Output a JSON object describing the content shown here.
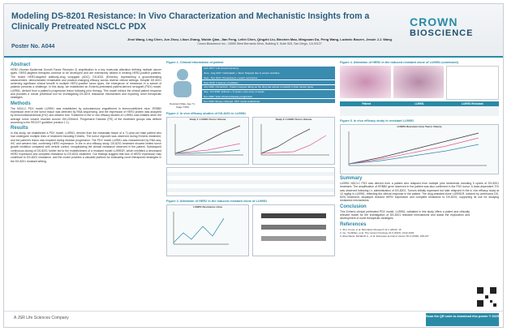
{
  "header": {
    "title": "Modeling DS-8201 Resistance: In Vivo Characterization and Mechanistic Insights from a Clinically Pretreated NSCLC PDX",
    "authors": "Jinxi Wang, Ling Chen, Jun Zhou, Likun Zhang, Wubin Qian, Jian Feng, Leilei Chen, Qingzhi Liu, Binchen Mao, Mingxuan Du, Peng Wang, Ludovic Bourre, Jessie J.J. Wang",
    "affiliation": "Crown Bioscience Inc., 16550 West Bernardo Drive, Building 5, Suite 525, San Diego, CA 92127",
    "poster_number": "Poster No. A044",
    "logo_top": "CROWN",
    "logo_bottom": "BIOSCIENCE"
  },
  "abstract": {
    "heading": "Abstract",
    "text": "HER2 (Human Epidermal Growth Factor Receptor 2) amplification is a key molecular alteration defining multiple cancer types. HER2-targeted therapies continue to be developed and are extensively utilized in treating HER2-positive patients. The recent HER2-targeted antibody-drug conjugate (ADC), DS-8201 (Enhertu), representing a groundbreaking advancement, demonstrated remarkable and practice-changing efficacy across diverse clinical settings. Despite DS-8201 achieving significant clinical benefit in multiple HER2-positive tumor types, the emergence of resistance in a subset of patients presents a challenge. In this study, we established an Enhertu-pretreated patient-derived xenograft (PDX) model, LU9951, derived from a patient's progressive lesion following prior therapy. This model mimics the clinical patient response and provides a robust preclinical tool for investigating DS-8201 resistance mechanisms and exploring novel therapeutic strategies."
  },
  "methods": {
    "heading": "Methods",
    "text": "The NSCLC PDX model LU9951 was established by subcutaneous engraftment in immunodeficient mice. ERBB2 expression level in the tumor tissue was detected by RNA sequencing, and the expression of HER2 protein was analyzed by immunohistochemical (IHC) and western blot. Treatment in the in vivo efficacy studies of LU9951 was initiated when the average tumor volume reached around 150-200mm3. Progressive Disease (PD) of the treatment groups was defined according to the RECIST guideline (version 1.1)."
  },
  "results": {
    "heading": "Results",
    "text": "In this study, we established a PDX model, LU9951, derived from the metastatic tissue of a 71-year-old male patient who had undergone multiple lines of treatment including Enhertu. The tumor regrowth was observed during Enhertu treatment, and the patient's lesion was biopsied during disease progression. The PDX model LU9951 was characterized by RNA-seq, IHC and western blot, confirming HER2 expression. In the in vivo efficacy study, DS-8201 treatment showed limited tumor growth inhibition compared with vehicle control, recapitulating the clinical resistance observed in the patient. Subsequent continuous dosing of DS-8201 further led to the establishment of a resistant model LU9951R, which exhibited a decreased HER2 expression and complete resistance to DS-8201 treatment. Our findings suggest that loss of HER2 expression may contribute to DS-8201 resistance, and the model provides a valuable platform for evaluating novel therapeutic strategies in the DS-8201 resistant setting."
  },
  "figure1": {
    "title": "Figure 1. Clinical Information of patient",
    "patient": "Resistant Male, Age 71, Stage T3N0",
    "timeline": [
      "April 2017: Left pneumonectomy",
      "June - Aug 2017: Carboplatin + Taxol. Stopped due to severe toxicities",
      "Sept - Nov 2017: Pemetrexed + Lower recurrence",
      "Sept 2018: 3 lesions of radiation",
      "July 2020: Osimertinib - Patient stopped taking as the drug has almost no activity in their cancer types",
      "July - Oct 2020: Enhertu + 5 cycles, once every 3 weeks",
      "Nov 2020: Scan showed disease progression",
      "Dec 2020: Biopsy collected, PDX model established"
    ]
  },
  "figure2": {
    "title": "Figure 2. In vivo efficacy studies of DS-8201 in LU9951",
    "chart1": "Study 1: LU9951 Tumor Volume",
    "chart2": "Study 2: LU9951 Tumor Volume"
  },
  "figure3": {
    "title": "Figure 3. Alteration of HER2 in the induced resistant clone of LU9951",
    "chart": "LU9951 Resistance clone"
  },
  "figure4": {
    "title": "Figure 4. Alteration of HER2 in the induced resistant clone of LU9951 (continued)",
    "table_head": [
      "Patient",
      "LU9951",
      "LU9951 Resistant"
    ]
  },
  "figure5": {
    "title": "Figure 5. In vivo efficacy study in resistant LU9951",
    "chart": "LU9951 Resistant clone Tumor Volume"
  },
  "summary": {
    "heading": "Summary",
    "text": "LU9951 NSCLC PDX was derived from a patient who relapsed from multiple prior treatments including 5 cycles of DS-8201 treatment. The amplification of ERBB2 gene observed in the patient was also confirmed in the PDX tumor. A dose-dependent TGI was observed following i.v. administration of DS-8201. Tumors initially regressed but later relapsed in the in vivo efficacy study at 10 mg/kg in LU9951, reflecting the clinical response in the patient. The drug-resistant clone LU9951R, induced by continuous DS-8201 treatment, displayed reduced HER2 expression and complete resistance to DS-8201, supporting its use for studying resistance mechanisms."
  },
  "conclusion": {
    "heading": "Conclusion",
    "text": "This Enhertu clinical pretreated PDX model, LU9951, validated in this study offers a potent and clinically relevant model for the investigation of DS-8201 resistant mechanisms and assist the exploration and development of novel therapeutic strategies."
  },
  "references": {
    "heading": "References",
    "items": [
      "1. Zhu, Kuma, et al. Biomarker Research 12.1 (2024): 16",
      "2. Go, Yoshihiko, et al. The Lancet Oncology 22.3 (2021): 1012-1020",
      "3. Eisenhauer, Elizabeth A., et al. European journal of cancer 45.2 (2009): 228-247"
    ]
  },
  "footer": {
    "company": "A JSR Life Sciences Company",
    "qr": "Scan the QR code to download this poster © 2025"
  }
}
